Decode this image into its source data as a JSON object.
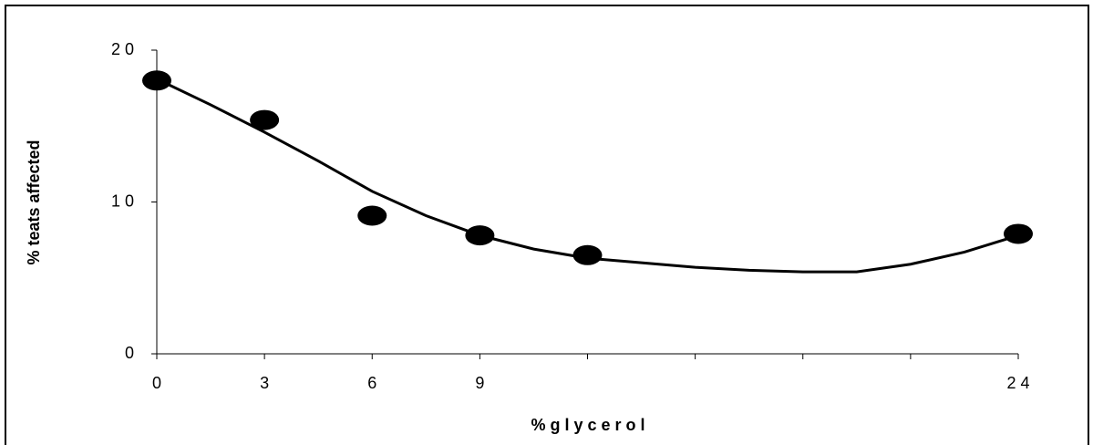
{
  "chart_data": {
    "type": "scatter",
    "x_label": "% g l y c e r o l",
    "y_label": "% teats affected",
    "series": [
      {
        "color": "#000000",
        "x": [
          0,
          3,
          6,
          9,
          12,
          24
        ],
        "values": [
          18.0,
          15.4,
          9.1,
          7.8,
          6.5,
          7.9
        ]
      }
    ],
    "trend_line": {
      "color": "#000000",
      "x": [
        0,
        1.5,
        3,
        4.5,
        6,
        7.5,
        9,
        10.5,
        12,
        13.5,
        15,
        16.5,
        18,
        19.5,
        21,
        22.5,
        24
      ],
      "values": [
        18.1,
        16.4,
        14.6,
        12.7,
        10.7,
        9.1,
        7.8,
        6.9,
        6.3,
        6.0,
        5.7,
        5.5,
        5.4,
        5.4,
        5.9,
        6.7,
        7.8
      ]
    },
    "xlim": [
      0,
      24
    ],
    "xticks": [
      0,
      3,
      6,
      9,
      {
        "value": 12,
        "label": null
      },
      {
        "value": 15,
        "label": null
      },
      {
        "value": 18,
        "label": null
      },
      {
        "value": 21,
        "label": null
      },
      {
        "value": 24,
        "label": "2 4"
      }
    ],
    "ylim": [
      0,
      20
    ],
    "yticks": [
      0,
      {
        "value": 10,
        "label": "1 0"
      },
      {
        "value": 20,
        "label": "2 0"
      }
    ]
  }
}
